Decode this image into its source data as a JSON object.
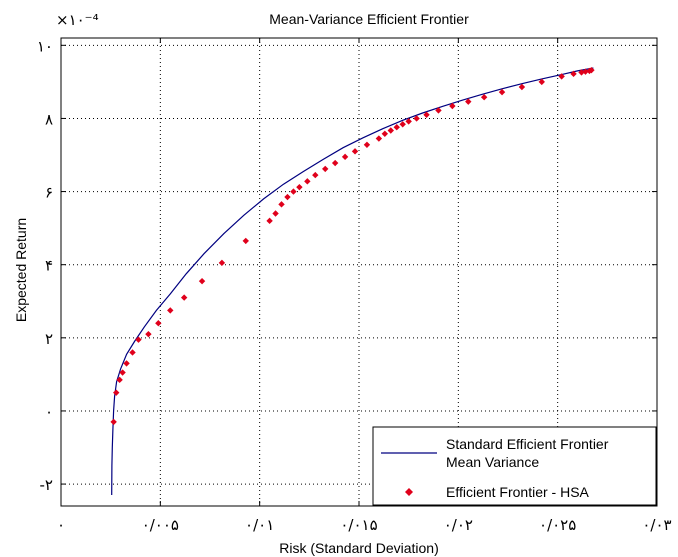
{
  "chart_data": {
    "type": "line",
    "title": "Mean-Variance Efficient Frontier",
    "xlabel": "Risk (Standard Deviation)",
    "ylabel": "Expected Return",
    "xlim": [
      0,
      0.03
    ],
    "ylim": [
      -2.6,
      10.2
    ],
    "y_multiplier_label": "×۱۰⁻⁴",
    "grid": true,
    "x_ticks": [
      {
        "value": 0,
        "label": "۰"
      },
      {
        "value": 0.005,
        "label": "۰/۰۰۵"
      },
      {
        "value": 0.01,
        "label": "۰/۰۱"
      },
      {
        "value": 0.015,
        "label": "۰/۰۱۵"
      },
      {
        "value": 0.02,
        "label": "۰/۰۲"
      },
      {
        "value": 0.025,
        "label": "۰/۰۲۵"
      },
      {
        "value": 0.03,
        "label": "۰/۰۳"
      }
    ],
    "y_ticks": [
      {
        "value": -2,
        "label": "-۲"
      },
      {
        "value": 0,
        "label": "۰"
      },
      {
        "value": 2,
        "label": "۲"
      },
      {
        "value": 4,
        "label": "۴"
      },
      {
        "value": 6,
        "label": "۶"
      },
      {
        "value": 8,
        "label": "۸"
      },
      {
        "value": 10,
        "label": "۱۰"
      }
    ],
    "legend": {
      "placement": "bottom-right",
      "entries": [
        {
          "label_lines": [
            "Standard Efficient Frontier",
            "Mean Variance"
          ],
          "marker": "line"
        },
        {
          "label_lines": [
            "Efficient Frontier - HSA"
          ],
          "marker": "diamond"
        }
      ]
    },
    "colors": {
      "line": "#000080",
      "marker": "#e0001b",
      "grid": "#000000"
    },
    "series": [
      {
        "name": "Standard Efficient Frontier Mean Variance",
        "type": "line",
        "x": [
          0.00255,
          0.00256,
          0.00258,
          0.00261,
          0.00265,
          0.0027,
          0.0028,
          0.003,
          0.0033,
          0.0037,
          0.0042,
          0.0048,
          0.0055,
          0.0063,
          0.0072,
          0.0082,
          0.0092,
          0.0102,
          0.0112,
          0.0122,
          0.0132,
          0.0142,
          0.0152,
          0.0162,
          0.0172,
          0.0182,
          0.0192,
          0.0202,
          0.0212,
          0.0222,
          0.0232,
          0.0242,
          0.0252,
          0.026,
          0.0268
        ],
        "y": [
          -2.3,
          -1.5,
          -1.0,
          -0.5,
          0.0,
          0.4,
          0.8,
          1.15,
          1.55,
          1.9,
          2.3,
          2.75,
          3.2,
          3.75,
          4.3,
          4.85,
          5.35,
          5.8,
          6.2,
          6.55,
          6.88,
          7.2,
          7.47,
          7.72,
          7.95,
          8.15,
          8.33,
          8.5,
          8.66,
          8.81,
          8.95,
          9.08,
          9.2,
          9.3,
          9.38
        ]
      },
      {
        "name": "Efficient Frontier - HSA",
        "type": "scatter",
        "x": [
          0.00265,
          0.00278,
          0.00295,
          0.0031,
          0.0033,
          0.0036,
          0.0039,
          0.0044,
          0.0049,
          0.0055,
          0.0062,
          0.0071,
          0.0081,
          0.0093,
          0.0105,
          0.0108,
          0.0111,
          0.0114,
          0.0117,
          0.012,
          0.0124,
          0.0128,
          0.0133,
          0.0138,
          0.0143,
          0.0148,
          0.0154,
          0.016,
          0.0163,
          0.0166,
          0.0169,
          0.0172,
          0.0175,
          0.0179,
          0.0184,
          0.019,
          0.0197,
          0.0205,
          0.0213,
          0.0222,
          0.0232,
          0.0242,
          0.0252,
          0.0258,
          0.0262,
          0.0264,
          0.0266,
          0.0267
        ],
        "y": [
          -0.3,
          0.5,
          0.85,
          1.05,
          1.3,
          1.6,
          1.95,
          2.1,
          2.4,
          2.75,
          3.1,
          3.55,
          4.05,
          4.65,
          5.2,
          5.4,
          5.65,
          5.85,
          6.0,
          6.12,
          6.28,
          6.45,
          6.62,
          6.78,
          6.95,
          7.1,
          7.28,
          7.45,
          7.58,
          7.67,
          7.76,
          7.84,
          7.92,
          8.0,
          8.1,
          8.22,
          8.34,
          8.46,
          8.58,
          8.72,
          8.86,
          9.0,
          9.15,
          9.22,
          9.26,
          9.28,
          9.3,
          9.32
        ]
      }
    ]
  }
}
